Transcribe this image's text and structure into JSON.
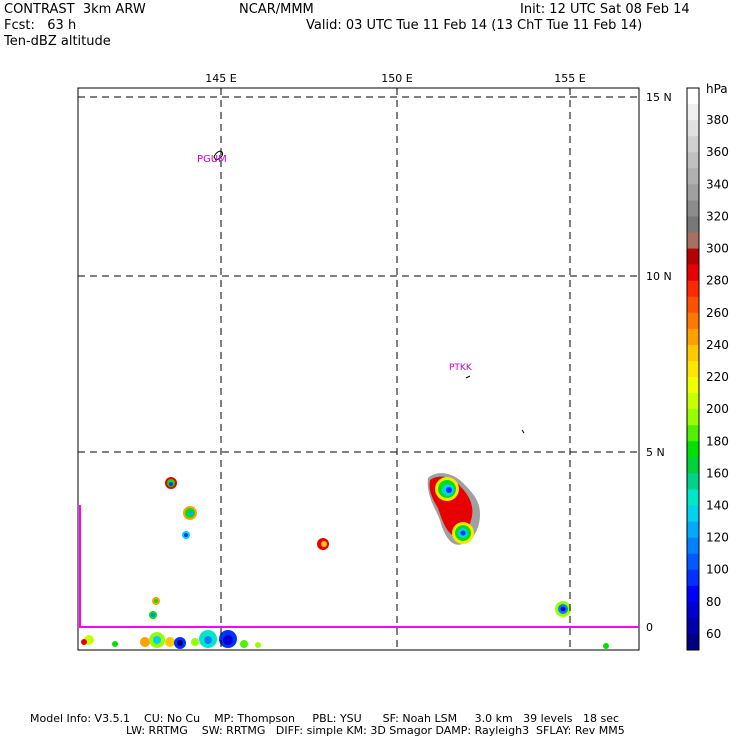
{
  "header": {
    "model": "CONTRAST  3km ARW",
    "org": "NCAR/MMM",
    "init": "Init: 12 UTC Sat 08 Feb 14",
    "fcst": "Fcst:   63 h",
    "valid": "Valid: 03 UTC Tue 11 Feb 14 (13 ChT Tue 11 Feb 14)",
    "field": "Ten-dBZ altitude"
  },
  "map": {
    "lon_labels": [
      "145 E",
      "150 E",
      "155 E"
    ],
    "lat_labels": [
      "15 N",
      "10 N",
      "5 N",
      "0"
    ],
    "stations": [
      "PGUM",
      "PTKK"
    ]
  },
  "colorbar": {
    "unit": "hPa",
    "labels": [
      "380",
      "360",
      "340",
      "320",
      "300",
      "280",
      "260",
      "240",
      "220",
      "200",
      "180",
      "160",
      "140",
      "120",
      "100",
      "80",
      "60"
    ],
    "colors": [
      "#ffffff",
      "#f0f0f0",
      "#e0e0e0",
      "#d0d0d0",
      "#c0c0c0",
      "#b0b0b0",
      "#a0a0a0",
      "#8c8c8c",
      "#787878",
      "#a87060",
      "#b40000",
      "#e60000",
      "#ff2800",
      "#ff5000",
      "#ff7800",
      "#ffa000",
      "#ffc800",
      "#ffe600",
      "#f0ff00",
      "#c8ff00",
      "#96ff00",
      "#50f000",
      "#00e100",
      "#00d23c",
      "#00d28c",
      "#00e6c8",
      "#00d2f0",
      "#00aaff",
      "#0082ff",
      "#005aff",
      "#0032ff",
      "#0000ff",
      "#0000d2",
      "#0000aa",
      "#000082"
    ]
  },
  "footer": {
    "line1": "Model Info: V3.5.1    CU: No Cu    MP: Thompson     PBL: YSU      SF: Noah LSM     3.0 km   39 levels   18 sec",
    "line2": "LW: RRTMG    SW: RRTMG   DIFF: simple KM: 3D Smagor DAMP: Rayleigh3  SFLAY: Rev MM5"
  }
}
